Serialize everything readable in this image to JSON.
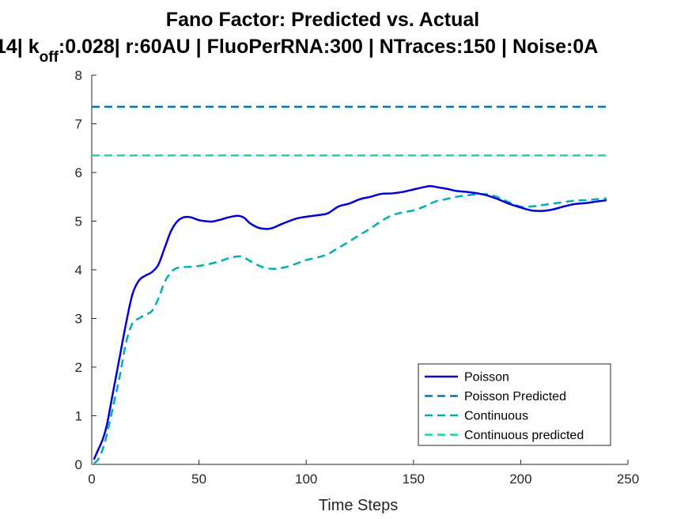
{
  "chart_data": {
    "type": "line",
    "title": "Fano Factor: Predicted vs. Actual",
    "subtitle_parts": {
      "before": "14| k",
      "subscript": "off",
      "after": ":0.028| r:60AU | FluoPerRNA:300 | NTraces:150 | Noise:0A"
    },
    "xlabel": "Time Steps",
    "ylabel": "",
    "xlim": [
      0,
      250
    ],
    "ylim": [
      0,
      8
    ],
    "xticks": [
      0,
      50,
      100,
      150,
      200,
      250
    ],
    "yticks": [
      0,
      1,
      2,
      3,
      4,
      5,
      6,
      7,
      8
    ],
    "grid": false,
    "legend_position": "bottom-right",
    "series": [
      {
        "name": "Poisson",
        "color": "#0000d6",
        "style": "solid",
        "x": [
          1,
          3,
          5,
          7,
          10,
          13,
          16,
          19,
          22,
          25,
          28,
          31,
          34,
          37,
          40,
          43,
          46,
          50,
          53,
          56,
          60,
          64,
          68,
          71,
          74,
          78,
          82,
          85,
          88,
          92,
          96,
          100,
          105,
          110,
          115,
          120,
          125,
          130,
          135,
          140,
          145,
          150,
          155,
          158,
          162,
          166,
          170,
          175,
          180,
          185,
          190,
          195,
          200,
          205,
          210,
          215,
          220,
          225,
          230,
          235,
          240
        ],
        "y": [
          0.1,
          0.3,
          0.5,
          0.8,
          1.5,
          2.2,
          2.9,
          3.5,
          3.78,
          3.88,
          3.95,
          4.1,
          4.45,
          4.8,
          5.0,
          5.08,
          5.08,
          5.02,
          5.0,
          4.99,
          5.03,
          5.08,
          5.11,
          5.07,
          4.95,
          4.86,
          4.84,
          4.87,
          4.93,
          5.0,
          5.06,
          5.09,
          5.12,
          5.16,
          5.3,
          5.36,
          5.45,
          5.5,
          5.56,
          5.57,
          5.6,
          5.65,
          5.7,
          5.72,
          5.69,
          5.66,
          5.62,
          5.6,
          5.57,
          5.52,
          5.44,
          5.35,
          5.28,
          5.22,
          5.21,
          5.24,
          5.3,
          5.35,
          5.37,
          5.4,
          5.43
        ]
      },
      {
        "name": "Poisson Predicted",
        "color": "#0072bd",
        "style": "dashed",
        "x": [
          0,
          240
        ],
        "y": [
          7.35,
          7.35
        ]
      },
      {
        "name": "Continuous",
        "color": "#00b0b0",
        "style": "dashed",
        "x": [
          1,
          3,
          5,
          7,
          10,
          13,
          16,
          19,
          22,
          25,
          28,
          31,
          34,
          37,
          40,
          45,
          50,
          55,
          60,
          65,
          70,
          75,
          80,
          85,
          90,
          95,
          100,
          105,
          110,
          115,
          120,
          125,
          130,
          135,
          140,
          145,
          150,
          155,
          160,
          165,
          170,
          175,
          180,
          185,
          190,
          195,
          200,
          205,
          210,
          215,
          220,
          225,
          230,
          235,
          240
        ],
        "y": [
          0.02,
          0.1,
          0.3,
          0.6,
          1.2,
          1.8,
          2.5,
          2.9,
          3.0,
          3.08,
          3.15,
          3.4,
          3.75,
          3.95,
          4.04,
          4.06,
          4.08,
          4.12,
          4.18,
          4.25,
          4.27,
          4.15,
          4.05,
          4.02,
          4.05,
          4.12,
          4.2,
          4.25,
          4.32,
          4.45,
          4.58,
          4.72,
          4.85,
          5.0,
          5.12,
          5.18,
          5.22,
          5.3,
          5.4,
          5.45,
          5.5,
          5.53,
          5.55,
          5.55,
          5.48,
          5.38,
          5.3,
          5.3,
          5.33,
          5.36,
          5.39,
          5.42,
          5.43,
          5.45,
          5.47
        ]
      },
      {
        "name": "Continuous predicted",
        "color": "#1ed888",
        "style": "dashed",
        "x": [
          0,
          240
        ],
        "y": [
          6.35,
          6.35
        ]
      }
    ]
  }
}
